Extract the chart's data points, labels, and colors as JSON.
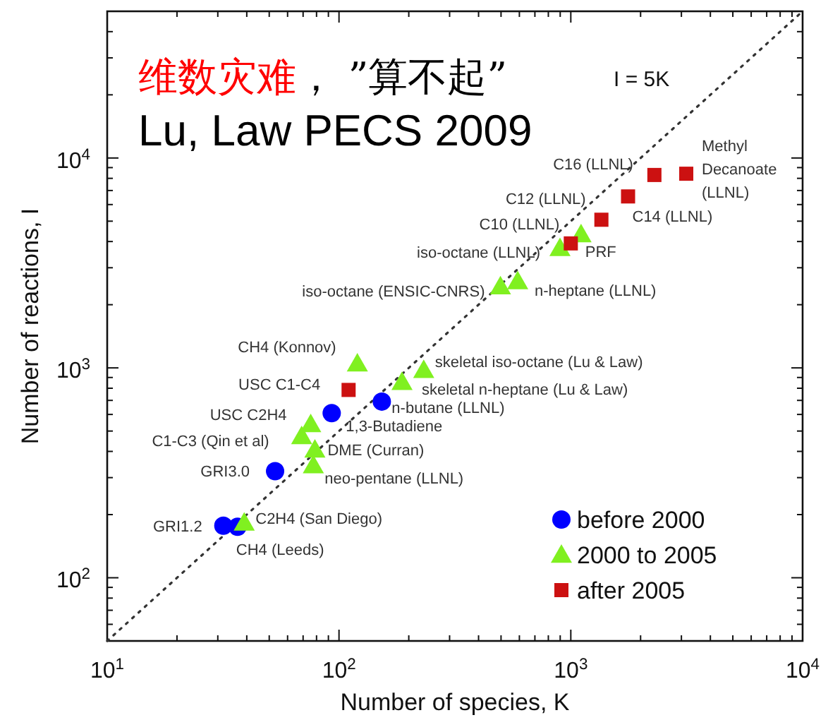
{
  "chart_data": {
    "type": "scatter",
    "xlabel": "Number of species, K",
    "ylabel": "Number of reactions, I",
    "log": "xy",
    "legend": "bottom right",
    "xlim": [
      10,
      10000
    ],
    "ylim": [
      50,
      50000
    ],
    "xticks": [
      {
        "value": 10,
        "label": "10$^{1}$"
      },
      {
        "value": 100,
        "label": "10$^{2}$"
      },
      {
        "value": 1000,
        "label": "10$^{3}$"
      },
      {
        "value": 10000,
        "label": "10$^{4}$"
      }
    ],
    "yticks": [
      {
        "value": 100,
        "label": "10$^{2}$"
      },
      {
        "value": 1000,
        "label": "10$^{3}$"
      },
      {
        "value": 10000,
        "label": "10$^{4}$"
      }
    ],
    "series": [
      {
        "type": "line",
        "color": "#333333",
        "line_style": "dotted",
        "marker": "none",
        "x": [
          10,
          10000
        ],
        "values": [
          50,
          50000
        ]
      },
      {
        "name": "before 2000",
        "color": "#0000ff",
        "marker": "circle",
        "x": [
          31.7,
          36.5,
          53,
          93,
          153
        ],
        "values": [
          177,
          175,
          322,
          609,
          691
        ]
      },
      {
        "name": "2000 to 2005",
        "color": "#80f020",
        "marker": "triangle",
        "x": [
          39,
          75.5,
          69,
          78.7,
          77.5,
          120,
          187,
          232,
          497,
          590,
          898,
          1107
        ],
        "values": [
          183,
          539,
          472,
          408,
          343,
          1048,
          856,
          977,
          2442,
          2583,
          3723,
          4326
        ]
      },
      {
        "name": "after 2005",
        "color": "#cc1111",
        "marker": "square",
        "x": [
          110,
          1000,
          1355,
          1766,
          2294,
          3148
        ],
        "values": [
          785,
          3918,
          5080,
          6560,
          8300,
          8415
        ]
      }
    ],
    "annotations": [
      "维数灾难",
      "， ”算不起”",
      "Lu, Law PECS 2009",
      "I = 5K",
      {
        "text": "GRI1.2",
        "x": 31.7,
        "y": 177
      },
      {
        "text": "CH4 (Leeds)",
        "x": 36.5,
        "y": 175
      },
      {
        "text": "C2H4 (San Diego)",
        "x": 39,
        "y": 183
      },
      {
        "text": "GRI3.0",
        "x": 53,
        "y": 322
      },
      {
        "text": "1,3-Butadiene",
        "x": 93,
        "y": 609
      },
      {
        "text": "USC C2H4",
        "x": 75.5,
        "y": 539
      },
      {
        "text": "n-butane (LLNL)",
        "x": 153,
        "y": 691
      },
      {
        "text": "C1-C3 (Qin et al)",
        "x": 69,
        "y": 472
      },
      {
        "text": "DME (Curran)",
        "x": 78.7,
        "y": 408
      },
      {
        "text": "neo-pentane (LLNL)",
        "x": 77.5,
        "y": 343
      },
      {
        "text": "CH4 (Konnov)",
        "x": 120,
        "y": 1048
      },
      {
        "text": "skeletal n-heptane (Lu & Law)",
        "x": 187,
        "y": 856
      },
      {
        "text": "skeletal iso-octane (Lu & Law)",
        "x": 232,
        "y": 977
      },
      {
        "text": "USC C1-C4",
        "x": 110,
        "y": 785
      },
      {
        "text": "iso-octane (ENSIC-CNRS)",
        "x": 497,
        "y": 2442
      },
      {
        "text": "n-heptane (LLNL)",
        "x": 590,
        "y": 2583
      },
      {
        "text": "iso-octane (LLNL)",
        "x": 898,
        "y": 3723
      },
      {
        "text": "PRF",
        "x": 1107,
        "y": 4326
      },
      {
        "text": "C10 (LLNL)",
        "x": 1000,
        "y": 3918
      },
      {
        "text": "C12 (LLNL)",
        "x": 1355,
        "y": 5080
      },
      {
        "text": "C14 (LLNL)",
        "x": 1766,
        "y": 6560
      },
      {
        "text": "C16 (LLNL)",
        "x": 2294,
        "y": 8300
      },
      {
        "text": "Methyl Decanoate (LLNL)",
        "x": 3148,
        "y": 8415
      }
    ]
  }
}
